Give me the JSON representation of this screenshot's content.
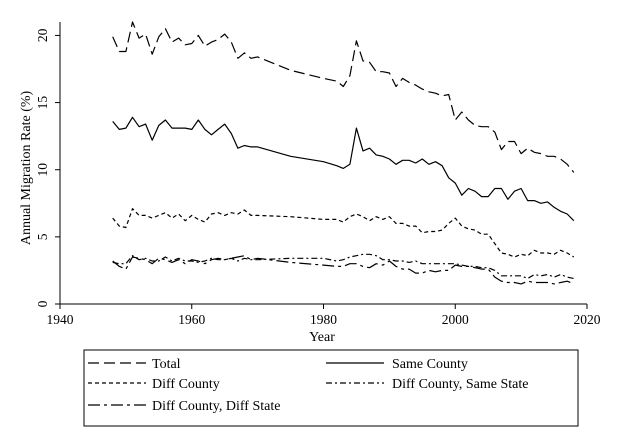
{
  "chart_data": {
    "type": "line",
    "xlabel": "Year",
    "ylabel": "Annual Migration Rate (%)",
    "xlim": [
      1940,
      2020
    ],
    "ylim": [
      0,
      21
    ],
    "xticks": [
      1940,
      1960,
      1980,
      2000,
      2020
    ],
    "yticks": [
      0,
      5,
      10,
      15,
      20
    ],
    "grid": false,
    "legend_position": "bottom",
    "series": [
      {
        "name": "Total",
        "dash": "long-dash",
        "x": [
          1948,
          1949,
          1950,
          1951,
          1952,
          1953,
          1954,
          1955,
          1956,
          1957,
          1958,
          1959,
          1960,
          1961,
          1962,
          1963,
          1964,
          1965,
          1966,
          1967,
          1968,
          1969,
          1970,
          1975,
          1980,
          1982,
          1983,
          1984,
          1985,
          1986,
          1987,
          1988,
          1989,
          1990,
          1991,
          1992,
          1993,
          1994,
          1995,
          1996,
          1997,
          1998,
          1999,
          2000,
          2001,
          2002,
          2003,
          2004,
          2005,
          2006,
          2007,
          2008,
          2009,
          2010,
          2011,
          2012,
          2013,
          2014,
          2015,
          2016,
          2017,
          2018
        ],
        "y": [
          19.9,
          18.8,
          18.8,
          21.0,
          19.8,
          20.1,
          18.6,
          19.9,
          20.5,
          19.5,
          19.8,
          19.3,
          19.4,
          20.0,
          19.2,
          19.5,
          19.7,
          20.1,
          19.5,
          18.3,
          18.7,
          18.3,
          18.4,
          17.4,
          16.8,
          16.6,
          16.2,
          17.0,
          19.6,
          18.1,
          18.0,
          17.3,
          17.3,
          17.2,
          16.2,
          16.8,
          16.5,
          16.3,
          16.0,
          15.8,
          15.7,
          15.5,
          15.6,
          13.7,
          14.3,
          13.7,
          13.3,
          13.2,
          13.2,
          12.8,
          11.5,
          12.1,
          12.1,
          11.2,
          11.6,
          11.3,
          11.2,
          11.0,
          11.0,
          10.8,
          10.4,
          9.8
        ]
      },
      {
        "name": "Same County",
        "dash": "solid",
        "x": [
          1948,
          1949,
          1950,
          1951,
          1952,
          1953,
          1954,
          1955,
          1956,
          1957,
          1958,
          1959,
          1960,
          1961,
          1962,
          1963,
          1964,
          1965,
          1966,
          1967,
          1968,
          1969,
          1970,
          1975,
          1980,
          1982,
          1983,
          1984,
          1985,
          1986,
          1987,
          1988,
          1989,
          1990,
          1991,
          1992,
          1993,
          1994,
          1995,
          1996,
          1997,
          1998,
          1999,
          2000,
          2001,
          2002,
          2003,
          2004,
          2005,
          2006,
          2007,
          2008,
          2009,
          2010,
          2011,
          2012,
          2013,
          2014,
          2015,
          2016,
          2017,
          2018
        ],
        "y": [
          13.6,
          13.0,
          13.1,
          13.9,
          13.2,
          13.4,
          12.2,
          13.3,
          13.7,
          13.1,
          13.1,
          13.1,
          13.0,
          13.7,
          13.0,
          12.6,
          13.0,
          13.4,
          12.7,
          11.6,
          11.8,
          11.7,
          11.7,
          11.0,
          10.6,
          10.3,
          10.1,
          10.4,
          13.1,
          11.4,
          11.6,
          11.1,
          11.0,
          10.8,
          10.4,
          10.7,
          10.7,
          10.5,
          10.8,
          10.4,
          10.6,
          10.3,
          9.4,
          9.0,
          8.1,
          8.6,
          8.4,
          8.0,
          8.0,
          8.6,
          8.6,
          7.8,
          8.4,
          8.6,
          7.7,
          7.7,
          7.5,
          7.6,
          7.2,
          6.9,
          6.7,
          6.2
        ]
      },
      {
        "name": "Diff County",
        "dash": "short-dash",
        "x": [
          1948,
          1949,
          1950,
          1951,
          1952,
          1953,
          1954,
          1955,
          1956,
          1957,
          1958,
          1959,
          1960,
          1961,
          1962,
          1963,
          1964,
          1965,
          1966,
          1967,
          1968,
          1969,
          1970,
          1975,
          1980,
          1982,
          1983,
          1984,
          1985,
          1986,
          1987,
          1988,
          1989,
          1990,
          1991,
          1992,
          1993,
          1994,
          1995,
          1996,
          1997,
          1998,
          1999,
          2000,
          2001,
          2002,
          2003,
          2004,
          2005,
          2006,
          2007,
          2008,
          2009,
          2010,
          2011,
          2012,
          2013,
          2014,
          2015,
          2016,
          2017,
          2018
        ],
        "y": [
          6.4,
          5.8,
          5.7,
          7.1,
          6.6,
          6.6,
          6.4,
          6.6,
          6.8,
          6.4,
          6.7,
          6.2,
          6.6,
          6.3,
          6.1,
          6.7,
          6.8,
          6.6,
          6.8,
          6.7,
          7.0,
          6.6,
          6.6,
          6.5,
          6.3,
          6.3,
          6.1,
          6.5,
          6.7,
          6.5,
          6.2,
          6.5,
          6.3,
          6.5,
          6.0,
          6.0,
          5.8,
          5.8,
          5.3,
          5.4,
          5.4,
          5.5,
          6.0,
          6.4,
          5.8,
          5.6,
          5.5,
          5.2,
          5.2,
          4.5,
          3.8,
          3.7,
          3.5,
          3.7,
          3.6,
          4.0,
          3.8,
          3.8,
          3.7,
          4.0,
          3.8,
          3.5
        ]
      },
      {
        "name": "Diff County, Same State",
        "dash": "dash-dot-short",
        "x": [
          1948,
          1949,
          1950,
          1951,
          1952,
          1953,
          1954,
          1955,
          1956,
          1957,
          1958,
          1959,
          1960,
          1961,
          1962,
          1963,
          1964,
          1965,
          1966,
          1967,
          1968,
          1969,
          1970,
          1975,
          1980,
          1982,
          1983,
          1984,
          1985,
          1986,
          1987,
          1988,
          1989,
          1990,
          1991,
          1992,
          1993,
          1994,
          1995,
          1996,
          1997,
          1998,
          1999,
          2000,
          2001,
          2002,
          2003,
          2004,
          2005,
          2006,
          2007,
          2008,
          2009,
          2010,
          2011,
          2012,
          2013,
          2014,
          2015,
          2016,
          2017,
          2018
        ],
        "y": [
          3.1,
          3.0,
          3.0,
          3.6,
          3.3,
          3.4,
          3.2,
          3.2,
          3.5,
          3.2,
          3.4,
          3.2,
          3.2,
          3.1,
          3.2,
          3.4,
          3.3,
          3.3,
          3.4,
          3.2,
          3.4,
          3.3,
          3.3,
          3.4,
          3.4,
          3.2,
          3.3,
          3.5,
          3.6,
          3.7,
          3.7,
          3.6,
          3.3,
          3.3,
          3.2,
          3.2,
          3.1,
          3.2,
          3.0,
          3.0,
          3.0,
          3.0,
          3.0,
          3.0,
          2.9,
          2.8,
          2.8,
          2.7,
          2.7,
          2.5,
          2.1,
          2.1,
          2.1,
          2.1,
          1.9,
          2.2,
          2.1,
          2.2,
          2.0,
          2.2,
          2.0,
          1.9
        ]
      },
      {
        "name": "Diff County, Diff State",
        "dash": "long-dash-dot",
        "x": [
          1948,
          1949,
          1950,
          1951,
          1952,
          1953,
          1954,
          1955,
          1956,
          1957,
          1958,
          1959,
          1960,
          1961,
          1962,
          1963,
          1964,
          1965,
          1966,
          1967,
          1968,
          1969,
          1970,
          1975,
          1980,
          1982,
          1983,
          1984,
          1985,
          1986,
          1987,
          1988,
          1989,
          1990,
          1991,
          1992,
          1993,
          1994,
          1995,
          1996,
          1997,
          1998,
          1999,
          2000,
          2001,
          2002,
          2003,
          2004,
          2005,
          2006,
          2007,
          2008,
          2009,
          2010,
          2011,
          2012,
          2013,
          2014,
          2015,
          2016,
          2017,
          2018
        ],
        "y": [
          3.2,
          2.8,
          2.6,
          3.5,
          3.4,
          3.3,
          3.0,
          3.4,
          3.3,
          3.1,
          3.3,
          3.0,
          3.3,
          3.2,
          3.0,
          3.3,
          3.4,
          3.3,
          3.4,
          3.5,
          3.6,
          3.3,
          3.4,
          3.1,
          2.9,
          2.8,
          2.8,
          3.0,
          3.0,
          2.8,
          2.7,
          3.0,
          2.9,
          3.2,
          2.8,
          2.6,
          2.6,
          2.3,
          2.3,
          2.5,
          2.4,
          2.5,
          2.5,
          2.9,
          2.8,
          2.8,
          2.7,
          2.6,
          2.6,
          2.0,
          1.7,
          1.6,
          1.6,
          1.5,
          1.7,
          1.6,
          1.6,
          1.6,
          1.5,
          1.6,
          1.7,
          1.5
        ]
      }
    ]
  }
}
